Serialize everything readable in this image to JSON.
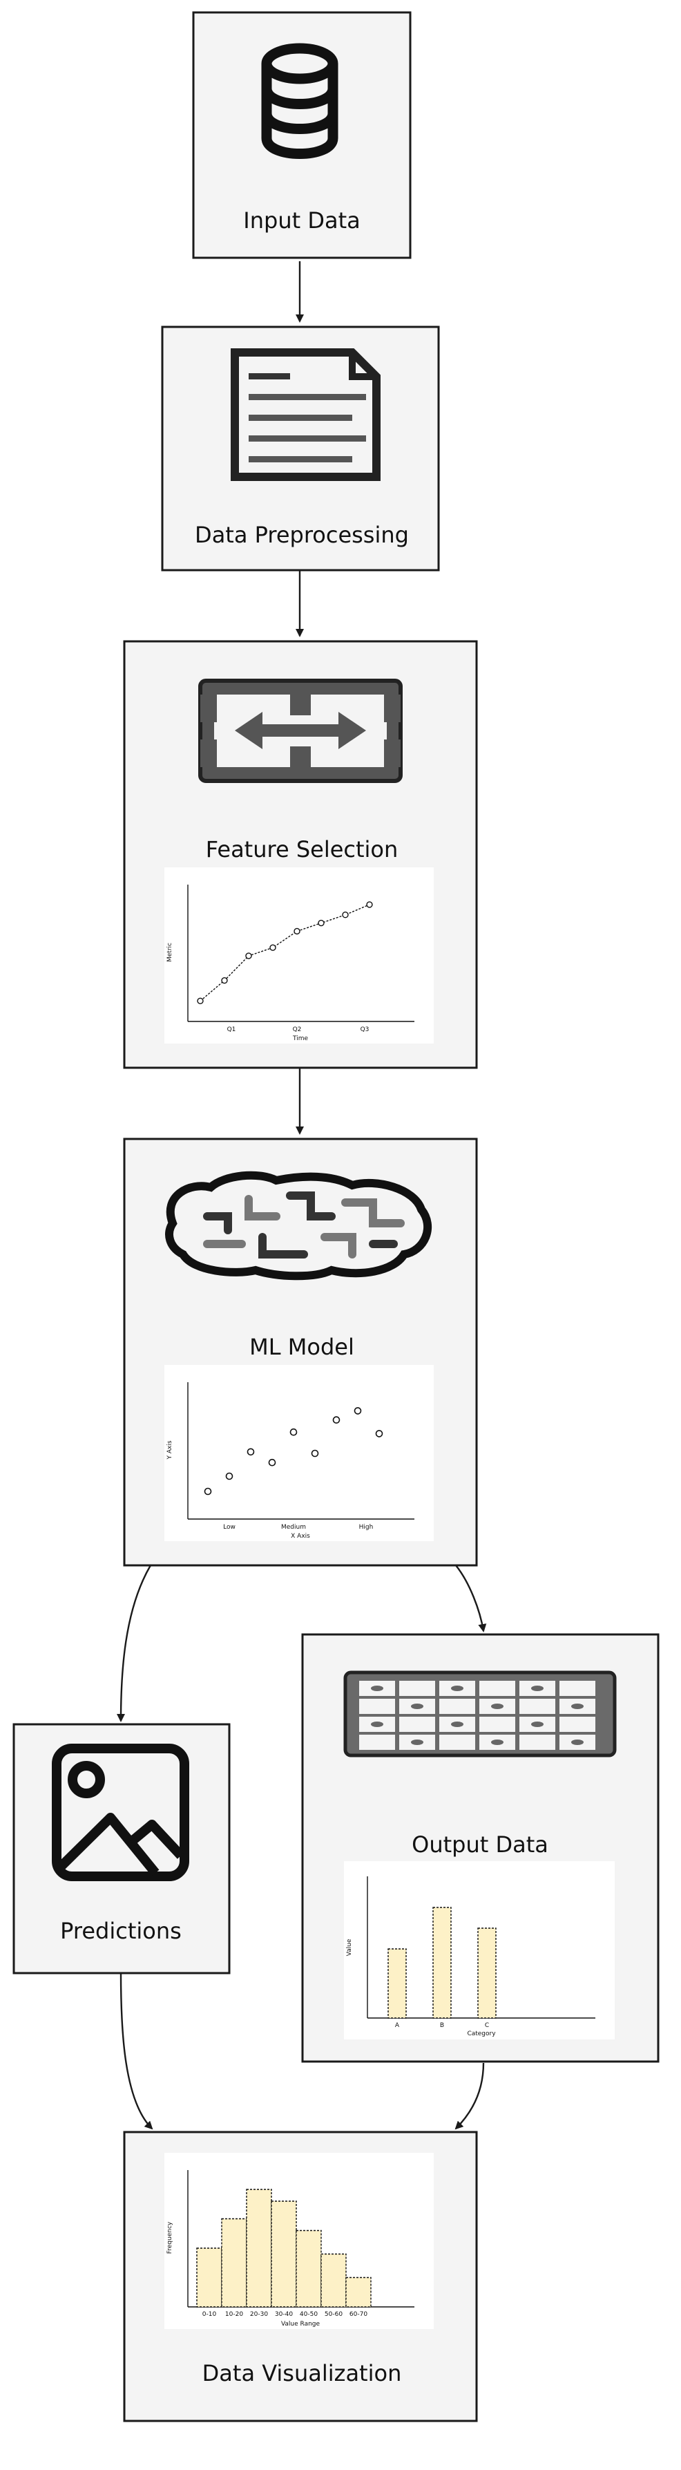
{
  "diagram": {
    "nodes": {
      "input": {
        "label": "Input Data",
        "icon": "database-icon"
      },
      "preprocess": {
        "label": "Data Preprocessing",
        "icon": "document-icon"
      },
      "feature": {
        "label": "Feature Selection",
        "icon": "swap-arrows-icon"
      },
      "model": {
        "label": "ML Model",
        "icon": "brain-icon"
      },
      "predictions": {
        "label": "Predictions",
        "icon": "image-icon"
      },
      "output": {
        "label": "Output Data",
        "icon": "table-icon"
      },
      "visualization": {
        "label": "Data Visualization",
        "icon": "histogram-icon"
      }
    },
    "edges": [
      [
        "input",
        "preprocess"
      ],
      [
        "preprocess",
        "feature"
      ],
      [
        "feature",
        "model"
      ],
      [
        "model",
        "predictions"
      ],
      [
        "model",
        "output"
      ],
      [
        "predictions",
        "visualization"
      ],
      [
        "output",
        "visualization"
      ]
    ]
  },
  "colors": {
    "stroke": "#1a1a1a",
    "box_fill": "#f4f4f4",
    "bar_fill": "#fdf1c7",
    "icon_gray": "#555555"
  },
  "chart_data": [
    {
      "type": "line",
      "xlabel": "Time",
      "ylabel": "Metric",
      "tick_labels": [
        "Q1",
        "Q2",
        "Q3"
      ],
      "series": [
        {
          "values": [
            1,
            2,
            3.2,
            3.6,
            4.4,
            4.8,
            5.2,
            5.7
          ]
        }
      ]
    },
    {
      "type": "scatter",
      "xlabel": "X Axis",
      "ylabel": "Y Axis",
      "tick_labels": [
        "Low",
        "Medium",
        "High"
      ],
      "points": [
        [
          0.5,
          1
        ],
        [
          1,
          2
        ],
        [
          1.5,
          3.6
        ],
        [
          2,
          2.9
        ],
        [
          2.5,
          4.9
        ],
        [
          3,
          3.5
        ],
        [
          3.5,
          5.7
        ],
        [
          4,
          6.3
        ],
        [
          4.5,
          4.8
        ]
      ]
    },
    {
      "type": "bar",
      "xlabel": "Category",
      "ylabel": "Value",
      "categories": [
        "A",
        "B",
        "C"
      ],
      "values": [
        5,
        8,
        6.5
      ]
    },
    {
      "type": "bar",
      "xlabel": "Value Range",
      "ylabel": "Frequency",
      "categories": [
        "0-10",
        "10-20",
        "20-30",
        "30-40",
        "40-50",
        "50-60",
        "60-70"
      ],
      "values": [
        5,
        7.5,
        10,
        9,
        6.5,
        4.5,
        2.5
      ]
    }
  ]
}
